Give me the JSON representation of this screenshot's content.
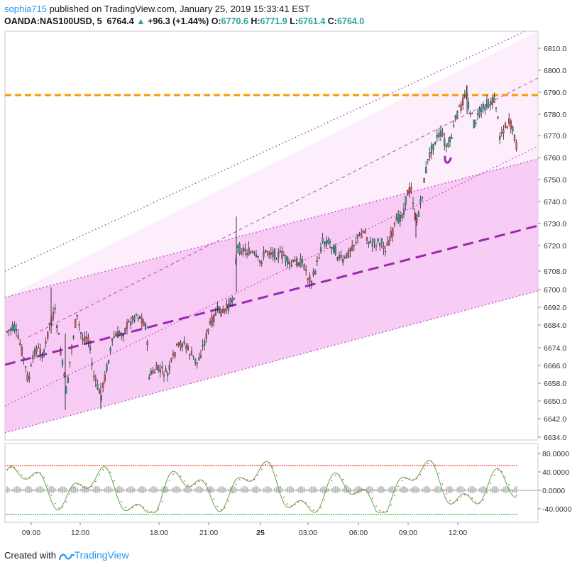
{
  "header": {
    "user": "sophia715",
    "published_text": "published on TradingView.com, January 25, 2019 15:33:41 EST",
    "symbol": "OANDA:NAS100USD, 5",
    "last": "6764.4",
    "change": "+96.3 (+1.44%)",
    "open_label": "O:",
    "open": "6770.6",
    "high_label": "H:",
    "high": "6771.9",
    "low_label": "L:",
    "low": "6761.4",
    "close_label": "C:",
    "close": "6764.0"
  },
  "price_axis": [
    "6810.0",
    "6800.0",
    "6790.0",
    "6780.0",
    "6770.0",
    "6760.0",
    "6750.0",
    "6740.0",
    "6730.0",
    "6720.0",
    "6708.0",
    "6700.0",
    "6692.0",
    "6684.0",
    "6674.0",
    "6666.0",
    "6658.0",
    "6650.0",
    "6642.0",
    "6634.0"
  ],
  "oscillator_axis": [
    "80.0000",
    "40.0000",
    "0.0000",
    "-40.0000"
  ],
  "time_axis": [
    "09:00",
    "12:00",
    "18:00",
    "21:00",
    "25",
    "03:00",
    "06:00",
    "09:00",
    "12:00"
  ],
  "footer": {
    "created_with": "Created with",
    "brand": "TradingView"
  },
  "colors": {
    "up": "#26a69a",
    "down": "#ef5350",
    "channel_line": "#9c27b0",
    "resistance": "#ff9800",
    "channel_fill": "#f9c7f5",
    "oscillator_fast": "#4caf50",
    "oscillator_slow": "#f44336"
  },
  "chart_data": {
    "type": "candlestick",
    "symbol": "OANDA:NAS100USD",
    "interval": "5",
    "resistance_level": 6788,
    "ylim": [
      6630,
      6815
    ],
    "ohlc": {
      "open": 6770.6,
      "high": 6771.9,
      "low": 6761.4,
      "close": 6764.0
    },
    "oscillator_ylim": [
      -60,
      90
    ],
    "oscillator_levels": [
      54,
      -50
    ]
  }
}
